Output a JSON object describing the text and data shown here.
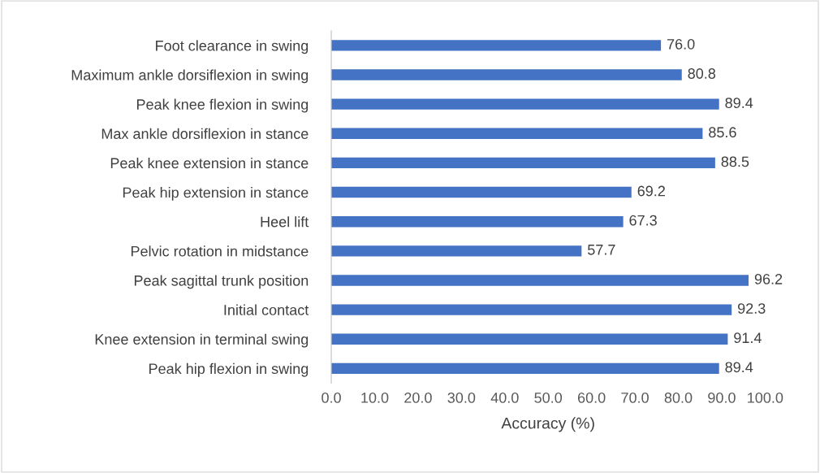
{
  "chart_data": {
    "type": "bar",
    "orientation": "horizontal",
    "xlabel": "Accuracy (%)",
    "categories": [
      "Foot clearance in swing",
      "Maximum ankle dorsiflexion in swing",
      "Peak knee flexion in swing",
      "Max ankle dorsiflexion in stance",
      "Peak knee extension in stance",
      "Peak hip extension in stance",
      "Heel lift",
      "Pelvic rotation in midstance",
      "Peak sagittal trunk position",
      "Initial contact",
      "Knee extension in terminal swing",
      "Peak hip flexion in swing"
    ],
    "values": [
      76.0,
      80.8,
      89.4,
      85.6,
      88.5,
      69.2,
      67.3,
      57.7,
      96.2,
      92.3,
      91.4,
      89.4
    ],
    "color": "#4472c4",
    "xlim": [
      0,
      100
    ],
    "xticks": [
      {
        "value": 0,
        "label": "0.0"
      },
      {
        "value": 10,
        "label": "10.0"
      },
      {
        "value": 20,
        "label": "20.0"
      },
      {
        "value": 30,
        "label": "30.0"
      },
      {
        "value": 40,
        "label": "40.0"
      },
      {
        "value": 50,
        "label": "50.0"
      },
      {
        "value": 60,
        "label": "60.0"
      },
      {
        "value": 70,
        "label": "70.0"
      },
      {
        "value": 80,
        "label": "80.0"
      },
      {
        "value": 90,
        "label": "90.0"
      },
      {
        "value": 100,
        "label": "100.0"
      }
    ],
    "value_labels": [
      "76.0",
      "80.8",
      "89.4",
      "85.6",
      "88.5",
      "69.2",
      "67.3",
      "57.7",
      "96.2",
      "92.3",
      "91.4",
      "89.4"
    ],
    "grid": false,
    "legend": false
  }
}
